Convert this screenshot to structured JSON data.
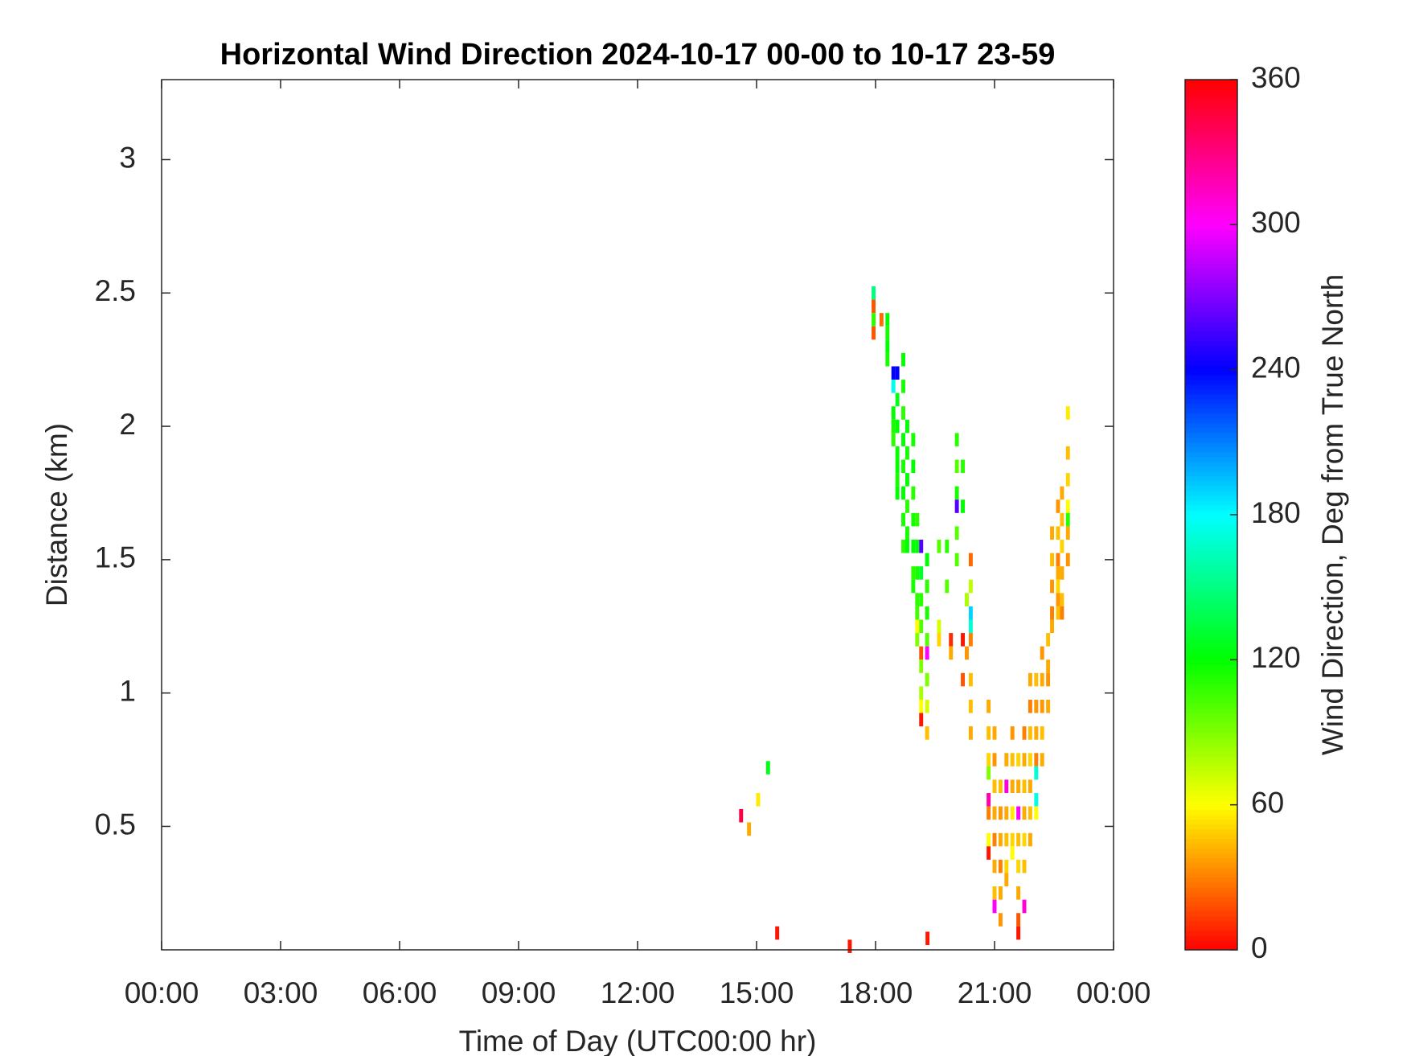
{
  "chart_data": {
    "type": "heatmap",
    "title": "Horizontal Wind Direction 2024-10-17 00-00 to 10-17 23-59",
    "x_label": "Time of Day (UTC00:00 hr)",
    "y_label": "Distance (km)",
    "colorbar_label": "Wind Direction, Deg from True North",
    "colormap": "hsv",
    "xlim": [
      0,
      24
    ],
    "xticks": [
      {
        "value": 0,
        "label": "00:00"
      },
      {
        "value": 3,
        "label": "03:00"
      },
      {
        "value": 6,
        "label": "06:00"
      },
      {
        "value": 9,
        "label": "09:00"
      },
      {
        "value": 12,
        "label": "12:00"
      },
      {
        "value": 15,
        "label": "15:00"
      },
      {
        "value": 18,
        "label": "18:00"
      },
      {
        "value": 21,
        "label": "21:00"
      },
      {
        "value": 24,
        "label": "00:00"
      }
    ],
    "ylim": [
      0.037,
      3.3
    ],
    "yticks": [
      0.5,
      1,
      1.5,
      2,
      2.5,
      3
    ],
    "clim": [
      0,
      360
    ],
    "cticks": [
      0,
      60,
      120,
      180,
      240,
      300,
      360
    ],
    "x": [
      14.61,
      14.81,
      15.04,
      15.29,
      15.52,
      17.35,
      19.31,
      17.95,
      17.95,
      17.95,
      17.95,
      18.15,
      18.3,
      18.3,
      18.3,
      18.3,
      18.45,
      18.45,
      18.45,
      18.45,
      18.45,
      18.55,
      18.55,
      18.55,
      18.55,
      18.55,
      18.55,
      18.55,
      18.7,
      18.7,
      18.7,
      18.7,
      18.7,
      18.7,
      18.7,
      18.7,
      18.8,
      18.8,
      18.8,
      18.8,
      18.8,
      18.8,
      18.95,
      18.95,
      18.95,
      18.95,
      18.95,
      18.95,
      18.95,
      19.05,
      19.05,
      19.05,
      19.05,
      19.05,
      19.05,
      19.05,
      19.15,
      19.15,
      19.15,
      19.15,
      19.15,
      19.15,
      19.15,
      19.15,
      19.15,
      19.3,
      19.3,
      19.3,
      19.3,
      19.3,
      19.3,
      19.3,
      19.3,
      19.6,
      19.6,
      19.6,
      19.8,
      19.8,
      19.9,
      19.9,
      20.05,
      20.05,
      20.05,
      20.05,
      20.05,
      20.05,
      20.2,
      20.2,
      20.2,
      20.2,
      20.3,
      20.3,
      20.4,
      20.4,
      20.4,
      20.4,
      20.4,
      20.4,
      20.4,
      20.4,
      20.85,
      20.85,
      20.85,
      20.85,
      20.85,
      20.85,
      20.85,
      20.85,
      21,
      21,
      21,
      21,
      21,
      21,
      21,
      21,
      21.15,
      21.15,
      21.15,
      21.15,
      21.15,
      21.15,
      21.3,
      21.3,
      21.3,
      21.3,
      21.3,
      21.3,
      21.45,
      21.45,
      21.45,
      21.45,
      21.45,
      21.45,
      21.6,
      21.6,
      21.6,
      21.6,
      21.6,
      21.6,
      21.6,
      21.6,
      21.75,
      21.75,
      21.75,
      21.75,
      21.75,
      21.75,
      21.75,
      21.9,
      21.9,
      21.9,
      21.9,
      21.9,
      21.9,
      21.9,
      22.05,
      22.05,
      22.05,
      22.05,
      22.05,
      22.05,
      22.05,
      22.2,
      22.2,
      22.2,
      22.2,
      22.2,
      22.35,
      22.35,
      22.35,
      22.35,
      22.45,
      22.45,
      22.45,
      22.45,
      22.45,
      22.6,
      22.6,
      22.6,
      22.6,
      22.6,
      22.6,
      22.6,
      22.7,
      22.7,
      22.7,
      22.7,
      22.7,
      22.7,
      22.85,
      22.85,
      22.85,
      22.85,
      22.85,
      22.85,
      22.85
    ],
    "y": [
      0.54,
      0.49,
      0.6,
      0.72,
      0.1,
      0.05,
      0.08,
      2.5,
      2.45,
      2.4,
      2.35,
      2.4,
      2.4,
      2.35,
      2.3,
      2.25,
      2.2,
      2.15,
      2.05,
      2,
      1.95,
      2.2,
      2.1,
      2,
      1.9,
      1.85,
      1.8,
      1.75,
      2.25,
      2.15,
      2.05,
      1.95,
      1.85,
      1.75,
      1.65,
      1.55,
      2,
      1.9,
      1.8,
      1.7,
      1.6,
      1.55,
      1.95,
      1.85,
      1.75,
      1.65,
      1.55,
      1.45,
      1.4,
      1.65,
      1.55,
      1.45,
      1.35,
      1.3,
      1.25,
      1.2,
      1.55,
      1.45,
      1.35,
      1.25,
      1.15,
      1.1,
      1,
      0.95,
      0.9,
      1.5,
      1.4,
      1.3,
      1.2,
      1.15,
      1.05,
      0.95,
      0.85,
      1.55,
      1.25,
      1.2,
      1.55,
      1.4,
      1.2,
      1.15,
      1.95,
      1.85,
      1.75,
      1.7,
      1.6,
      1.5,
      1.85,
      1.7,
      1.2,
      1.05,
      1.35,
      1.15,
      1.5,
      1.4,
      1.3,
      1.25,
      1.2,
      1.05,
      0.95,
      0.85,
      0.95,
      0.85,
      0.75,
      0.7,
      0.6,
      0.55,
      0.45,
      0.4,
      0.85,
      0.75,
      0.65,
      0.55,
      0.45,
      0.35,
      0.25,
      0.2,
      0.65,
      0.55,
      0.45,
      0.35,
      0.25,
      0.15,
      0.75,
      0.65,
      0.55,
      0.45,
      0.35,
      0.3,
      0.85,
      0.75,
      0.65,
      0.55,
      0.45,
      0.4,
      0.75,
      0.65,
      0.55,
      0.45,
      0.35,
      0.25,
      0.15,
      0.1,
      0.85,
      0.75,
      0.65,
      0.55,
      0.45,
      0.35,
      0.2,
      1.05,
      0.95,
      0.85,
      0.75,
      0.65,
      0.55,
      0.45,
      1.05,
      0.95,
      0.85,
      0.75,
      0.7,
      0.6,
      0.55,
      1.15,
      1.05,
      0.95,
      0.85,
      0.75,
      1.2,
      1.1,
      1.05,
      0.95,
      1.6,
      1.5,
      1.4,
      1.3,
      1.25,
      1.7,
      1.6,
      1.5,
      1.45,
      1.4,
      1.35,
      1.3,
      1.75,
      1.65,
      1.55,
      1.45,
      1.35,
      1.3,
      2.05,
      1.9,
      1.8,
      1.7,
      1.65,
      1.6,
      1.5
    ],
    "values": [
      345,
      40,
      55,
      125,
      5,
      5,
      5,
      150,
      20,
      110,
      20,
      25,
      120,
      115,
      120,
      115,
      240,
      175,
      120,
      115,
      110,
      240,
      125,
      120,
      118,
      120,
      115,
      120,
      120,
      115,
      110,
      120,
      115,
      120,
      115,
      110,
      120,
      115,
      120,
      110,
      115,
      120,
      115,
      120,
      110,
      115,
      120,
      110,
      115,
      110,
      120,
      115,
      110,
      105,
      60,
      90,
      260,
      130,
      110,
      100,
      20,
      90,
      80,
      60,
      5,
      120,
      110,
      115,
      100,
      300,
      90,
      70,
      45,
      100,
      70,
      50,
      110,
      100,
      10,
      40,
      110,
      100,
      115,
      260,
      100,
      100,
      110,
      120,
      5,
      20,
      80,
      35,
      25,
      75,
      190,
      170,
      30,
      45,
      45,
      40,
      40,
      45,
      50,
      90,
      320,
      30,
      60,
      5,
      40,
      35,
      45,
      40,
      30,
      40,
      45,
      300,
      45,
      35,
      40,
      30,
      40,
      35,
      40,
      310,
      40,
      45,
      50,
      40,
      35,
      45,
      40,
      55,
      50,
      60,
      50,
      40,
      300,
      45,
      50,
      40,
      20,
      5,
      30,
      40,
      45,
      40,
      50,
      45,
      310,
      40,
      30,
      45,
      50,
      40,
      45,
      40,
      45,
      35,
      40,
      30,
      170,
      175,
      60,
      35,
      40,
      35,
      45,
      40,
      45,
      40,
      35,
      40,
      40,
      45,
      35,
      30,
      40,
      35,
      45,
      30,
      40,
      50,
      35,
      45,
      40,
      45,
      50,
      40,
      45,
      30,
      55,
      45,
      50,
      60,
      110,
      40,
      35
    ]
  }
}
